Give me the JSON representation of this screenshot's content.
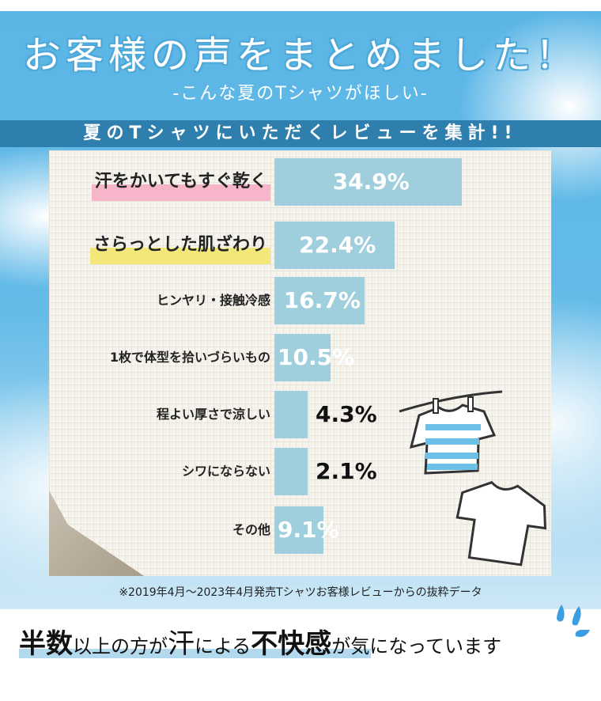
{
  "header": {
    "title": "お客様の声をまとめました！",
    "subtitle": "-こんな夏のTシャツがほしい-",
    "band": "夏のTシャツにいただくレビューを集計!!"
  },
  "chart_data": {
    "type": "bar",
    "orientation": "horizontal",
    "categories": [
      "汗をかいてもすぐ乾く",
      "さらっとした肌ざわり",
      "ヒンヤリ・接触冷感",
      "1枚で体型を拾いづらいもの",
      "程よい厚さで涼しい",
      "シワにならない",
      "その他"
    ],
    "values": [
      34.9,
      22.4,
      16.7,
      10.5,
      4.3,
      2.1,
      9.1
    ],
    "value_labels": [
      "34.9%",
      "22.4%",
      "16.7%",
      "10.5%",
      "4.3%",
      "2.1%",
      "9.1%"
    ],
    "unit": "%",
    "bar_color": "#9fcfdc",
    "highlight_colors": [
      "#f6b5c9",
      "#f3e77a"
    ]
  },
  "footnote": "※2019年4月～2023年4月発売Tシャツお客様レビューからの抜粋データ",
  "conclusion": {
    "parts": [
      "半数",
      "以上の方が",
      "汗",
      "による",
      "不快感",
      "が気になっています"
    ]
  },
  "colors": {
    "band": "#2f7fae",
    "sky": "#5bb6e6"
  }
}
